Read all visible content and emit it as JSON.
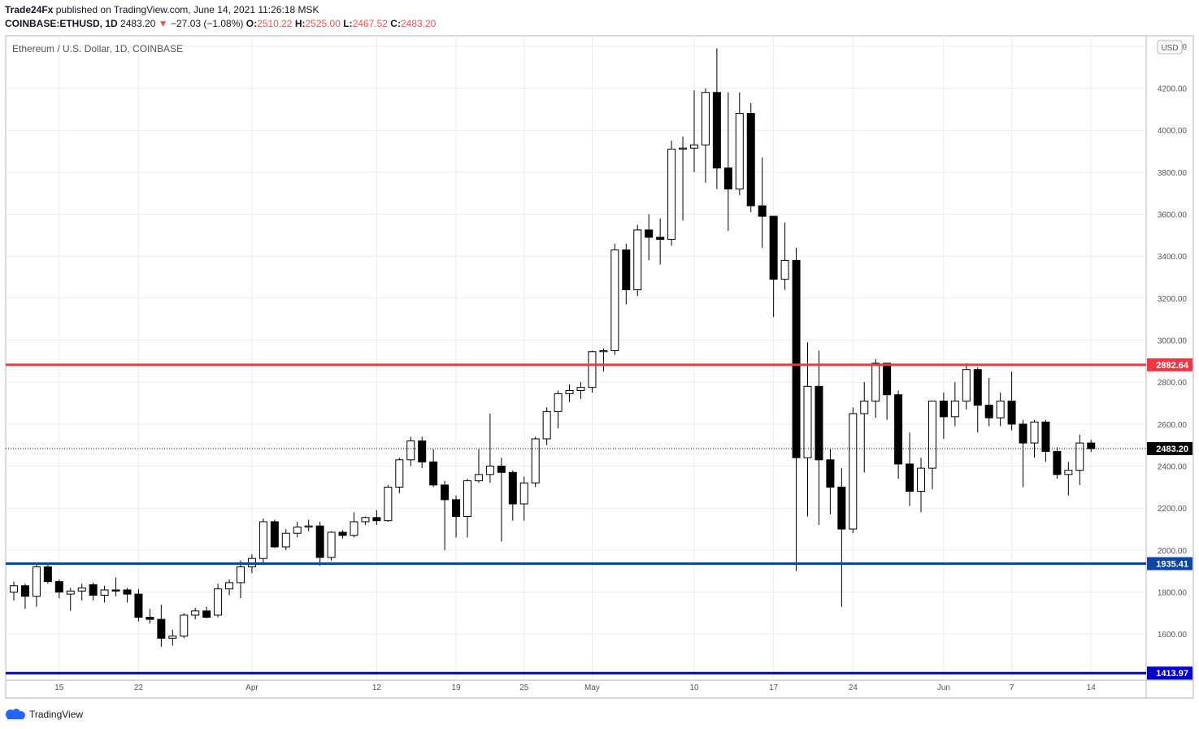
{
  "header": {
    "author": "Trade24Fx",
    "published_text": "published on TradingView.com, June 14, 2021 11:26:18 MSK",
    "symbol": "COINBASE:ETHUSD, 1D",
    "last_price": "2483.20",
    "change": "−27.03 (−1.08%)",
    "open_label": "O:",
    "open_value": "2510.22",
    "high_label": "H:",
    "high_value": "2525.00",
    "low_label": "L:",
    "low_value": "2467.52",
    "close_label": "C:",
    "close_value": "2483.20"
  },
  "footer": {
    "brand": "TradingView"
  },
  "colors": {
    "resistance": "#f23645",
    "support": "#0d47a1",
    "support_low": "#0000cc",
    "grid": "#ececec",
    "candle_up": "#ffffff",
    "candle_down": "#000000"
  },
  "chart_data": {
    "type": "candlestick",
    "title": "Ethereum / U.S. Dollar, 1D, COINBASE",
    "currency_badge": "USD",
    "ylim": [
      1380,
      4450
    ],
    "y_ticks": [
      "1600.00",
      "1800.00",
      "2000.00",
      "2200.00",
      "2400.00",
      "2600.00",
      "2800.00",
      "3000.00",
      "3200.00",
      "3400.00",
      "3600.00",
      "3800.00",
      "4000.00",
      "4200.00",
      "4400.00"
    ],
    "x_ticks": [
      {
        "label": "15",
        "date": "2021-03-15"
      },
      {
        "label": "22",
        "date": "2021-03-22"
      },
      {
        "label": "Apr",
        "date": "2021-04-01"
      },
      {
        "label": "12",
        "date": "2021-04-12"
      },
      {
        "label": "19",
        "date": "2021-04-19"
      },
      {
        "label": "25",
        "date": "2021-04-25"
      },
      {
        "label": "May",
        "date": "2021-05-01"
      },
      {
        "label": "10",
        "date": "2021-05-10"
      },
      {
        "label": "17",
        "date": "2021-05-17"
      },
      {
        "label": "24",
        "date": "2021-05-24"
      },
      {
        "label": "Jun",
        "date": "2021-06-01"
      },
      {
        "label": "7",
        "date": "2021-06-07"
      },
      {
        "label": "14",
        "date": "2021-06-14"
      }
    ],
    "candles": [
      {
        "d": "2021-03-11",
        "o": 1800,
        "h": 1850,
        "l": 1760,
        "c": 1830
      },
      {
        "d": "2021-03-12",
        "o": 1830,
        "h": 1840,
        "l": 1720,
        "c": 1780
      },
      {
        "d": "2021-03-13",
        "o": 1780,
        "h": 1940,
        "l": 1730,
        "c": 1920
      },
      {
        "d": "2021-03-14",
        "o": 1920,
        "h": 1935,
        "l": 1840,
        "c": 1850
      },
      {
        "d": "2021-03-15",
        "o": 1850,
        "h": 1860,
        "l": 1770,
        "c": 1800
      },
      {
        "d": "2021-03-16",
        "o": 1790,
        "h": 1820,
        "l": 1710,
        "c": 1805
      },
      {
        "d": "2021-03-17",
        "o": 1805,
        "h": 1840,
        "l": 1760,
        "c": 1820
      },
      {
        "d": "2021-03-18",
        "o": 1835,
        "h": 1845,
        "l": 1760,
        "c": 1785
      },
      {
        "d": "2021-03-19",
        "o": 1785,
        "h": 1830,
        "l": 1750,
        "c": 1810
      },
      {
        "d": "2021-03-20",
        "o": 1810,
        "h": 1870,
        "l": 1780,
        "c": 1805
      },
      {
        "d": "2021-03-21",
        "o": 1810,
        "h": 1820,
        "l": 1750,
        "c": 1790
      },
      {
        "d": "2021-03-22",
        "o": 1790,
        "h": 1815,
        "l": 1660,
        "c": 1680
      },
      {
        "d": "2021-03-23",
        "o": 1680,
        "h": 1720,
        "l": 1650,
        "c": 1670
      },
      {
        "d": "2021-03-24",
        "o": 1670,
        "h": 1740,
        "l": 1540,
        "c": 1580
      },
      {
        "d": "2021-03-25",
        "o": 1580,
        "h": 1620,
        "l": 1545,
        "c": 1590
      },
      {
        "d": "2021-03-26",
        "o": 1590,
        "h": 1700,
        "l": 1580,
        "c": 1690
      },
      {
        "d": "2021-03-27",
        "o": 1690,
        "h": 1725,
        "l": 1670,
        "c": 1710
      },
      {
        "d": "2021-03-28",
        "o": 1710,
        "h": 1730,
        "l": 1675,
        "c": 1680
      },
      {
        "d": "2021-03-29",
        "o": 1690,
        "h": 1840,
        "l": 1680,
        "c": 1815
      },
      {
        "d": "2021-03-30",
        "o": 1815,
        "h": 1860,
        "l": 1785,
        "c": 1845
      },
      {
        "d": "2021-03-31",
        "o": 1845,
        "h": 1950,
        "l": 1770,
        "c": 1920
      },
      {
        "d": "2021-04-01",
        "o": 1920,
        "h": 1980,
        "l": 1890,
        "c": 1960
      },
      {
        "d": "2021-04-02",
        "o": 1960,
        "h": 2150,
        "l": 1940,
        "c": 2135
      },
      {
        "d": "2021-04-03",
        "o": 2135,
        "h": 2145,
        "l": 2010,
        "c": 2015
      },
      {
        "d": "2021-04-04",
        "o": 2015,
        "h": 2100,
        "l": 2000,
        "c": 2080
      },
      {
        "d": "2021-04-05",
        "o": 2080,
        "h": 2135,
        "l": 2060,
        "c": 2110
      },
      {
        "d": "2021-04-06",
        "o": 2110,
        "h": 2145,
        "l": 2090,
        "c": 2115
      },
      {
        "d": "2021-04-07",
        "o": 2115,
        "h": 2135,
        "l": 1925,
        "c": 1965
      },
      {
        "d": "2021-04-08",
        "o": 1965,
        "h": 2090,
        "l": 1950,
        "c": 2085
      },
      {
        "d": "2021-04-09",
        "o": 2085,
        "h": 2095,
        "l": 2055,
        "c": 2070
      },
      {
        "d": "2021-04-10",
        "o": 2070,
        "h": 2180,
        "l": 2060,
        "c": 2135
      },
      {
        "d": "2021-04-11",
        "o": 2135,
        "h": 2160,
        "l": 2120,
        "c": 2155
      },
      {
        "d": "2021-04-12",
        "o": 2155,
        "h": 2190,
        "l": 2120,
        "c": 2140
      },
      {
        "d": "2021-04-13",
        "o": 2140,
        "h": 2310,
        "l": 2135,
        "c": 2300
      },
      {
        "d": "2021-04-14",
        "o": 2300,
        "h": 2440,
        "l": 2270,
        "c": 2430
      },
      {
        "d": "2021-04-15",
        "o": 2430,
        "h": 2540,
        "l": 2400,
        "c": 2520
      },
      {
        "d": "2021-04-16",
        "o": 2520,
        "h": 2540,
        "l": 2390,
        "c": 2420
      },
      {
        "d": "2021-04-17",
        "o": 2420,
        "h": 2480,
        "l": 2300,
        "c": 2310
      },
      {
        "d": "2021-04-18",
        "o": 2310,
        "h": 2330,
        "l": 2000,
        "c": 2240
      },
      {
        "d": "2021-04-19",
        "o": 2240,
        "h": 2260,
        "l": 2060,
        "c": 2160
      },
      {
        "d": "2021-04-20",
        "o": 2160,
        "h": 2340,
        "l": 2060,
        "c": 2330
      },
      {
        "d": "2021-04-21",
        "o": 2330,
        "h": 2480,
        "l": 2320,
        "c": 2360
      },
      {
        "d": "2021-04-22",
        "o": 2360,
        "h": 2650,
        "l": 2320,
        "c": 2400
      },
      {
        "d": "2021-04-23",
        "o": 2400,
        "h": 2440,
        "l": 2040,
        "c": 2370
      },
      {
        "d": "2021-04-24",
        "o": 2370,
        "h": 2380,
        "l": 2140,
        "c": 2220
      },
      {
        "d": "2021-04-25",
        "o": 2220,
        "h": 2350,
        "l": 2140,
        "c": 2320
      },
      {
        "d": "2021-04-26",
        "o": 2320,
        "h": 2540,
        "l": 2300,
        "c": 2530
      },
      {
        "d": "2021-04-27",
        "o": 2530,
        "h": 2680,
        "l": 2500,
        "c": 2660
      },
      {
        "d": "2021-04-28",
        "o": 2660,
        "h": 2760,
        "l": 2580,
        "c": 2745
      },
      {
        "d": "2021-04-29",
        "o": 2745,
        "h": 2790,
        "l": 2705,
        "c": 2760
      },
      {
        "d": "2021-04-30",
        "o": 2760,
        "h": 2800,
        "l": 2720,
        "c": 2775
      },
      {
        "d": "2021-05-01",
        "o": 2775,
        "h": 2950,
        "l": 2750,
        "c": 2945
      },
      {
        "d": "2021-05-02",
        "o": 2945,
        "h": 2960,
        "l": 2850,
        "c": 2950
      },
      {
        "d": "2021-05-03",
        "o": 2950,
        "h": 3460,
        "l": 2930,
        "c": 3430
      },
      {
        "d": "2021-05-04",
        "o": 3430,
        "h": 3460,
        "l": 3170,
        "c": 3240
      },
      {
        "d": "2021-05-05",
        "o": 3240,
        "h": 3550,
        "l": 3210,
        "c": 3525
      },
      {
        "d": "2021-05-06",
        "o": 3525,
        "h": 3600,
        "l": 3380,
        "c": 3490
      },
      {
        "d": "2021-05-07",
        "o": 3490,
        "h": 3580,
        "l": 3360,
        "c": 3480
      },
      {
        "d": "2021-05-08",
        "o": 3480,
        "h": 3950,
        "l": 3450,
        "c": 3910
      },
      {
        "d": "2021-05-09",
        "o": 3910,
        "h": 3970,
        "l": 3570,
        "c": 3915
      },
      {
        "d": "2021-05-10",
        "o": 3915,
        "h": 4190,
        "l": 3800,
        "c": 3930
      },
      {
        "d": "2021-05-11",
        "o": 3930,
        "h": 4200,
        "l": 3750,
        "c": 4180
      },
      {
        "d": "2021-05-12",
        "o": 4180,
        "h": 4390,
        "l": 3720,
        "c": 3820
      },
      {
        "d": "2021-05-13",
        "o": 3820,
        "h": 4180,
        "l": 3520,
        "c": 3720
      },
      {
        "d": "2021-05-14",
        "o": 3720,
        "h": 4180,
        "l": 3690,
        "c": 4080
      },
      {
        "d": "2021-05-15",
        "o": 4080,
        "h": 4130,
        "l": 3610,
        "c": 3640
      },
      {
        "d": "2021-05-16",
        "o": 3640,
        "h": 3870,
        "l": 3440,
        "c": 3590
      },
      {
        "d": "2021-05-17",
        "o": 3590,
        "h": 3580,
        "l": 3110,
        "c": 3290
      },
      {
        "d": "2021-05-18",
        "o": 3290,
        "h": 3560,
        "l": 3240,
        "c": 3380
      },
      {
        "d": "2021-05-19",
        "o": 3380,
        "h": 3440,
        "l": 1900,
        "c": 2440
      },
      {
        "d": "2021-05-20",
        "o": 2440,
        "h": 2990,
        "l": 2160,
        "c": 2780
      },
      {
        "d": "2021-05-21",
        "o": 2780,
        "h": 2950,
        "l": 2120,
        "c": 2430
      },
      {
        "d": "2021-05-22",
        "o": 2430,
        "h": 2480,
        "l": 2170,
        "c": 2300
      },
      {
        "d": "2021-05-23",
        "o": 2300,
        "h": 2390,
        "l": 1730,
        "c": 2100
      },
      {
        "d": "2021-05-24",
        "o": 2100,
        "h": 2680,
        "l": 2080,
        "c": 2650
      },
      {
        "d": "2021-05-25",
        "o": 2650,
        "h": 2800,
        "l": 2370,
        "c": 2710
      },
      {
        "d": "2021-05-26",
        "o": 2710,
        "h": 2910,
        "l": 2630,
        "c": 2890
      },
      {
        "d": "2021-05-27",
        "o": 2890,
        "h": 2890,
        "l": 2620,
        "c": 2740
      },
      {
        "d": "2021-05-28",
        "o": 2740,
        "h": 2760,
        "l": 2340,
        "c": 2410
      },
      {
        "d": "2021-05-29",
        "o": 2410,
        "h": 2560,
        "l": 2210,
        "c": 2280
      },
      {
        "d": "2021-05-30",
        "o": 2280,
        "h": 2440,
        "l": 2180,
        "c": 2390
      },
      {
        "d": "2021-05-31",
        "o": 2390,
        "h": 2710,
        "l": 2290,
        "c": 2710
      },
      {
        "d": "2021-06-01",
        "o": 2710,
        "h": 2750,
        "l": 2530,
        "c": 2635
      },
      {
        "d": "2021-06-02",
        "o": 2635,
        "h": 2800,
        "l": 2590,
        "c": 2710
      },
      {
        "d": "2021-06-03",
        "o": 2710,
        "h": 2890,
        "l": 2670,
        "c": 2860
      },
      {
        "d": "2021-06-04",
        "o": 2860,
        "h": 2870,
        "l": 2560,
        "c": 2690
      },
      {
        "d": "2021-06-05",
        "o": 2690,
        "h": 2820,
        "l": 2590,
        "c": 2630
      },
      {
        "d": "2021-06-06",
        "o": 2630,
        "h": 2750,
        "l": 2590,
        "c": 2710
      },
      {
        "d": "2021-06-07",
        "o": 2710,
        "h": 2850,
        "l": 2570,
        "c": 2600
      },
      {
        "d": "2021-06-08",
        "o": 2600,
        "h": 2620,
        "l": 2300,
        "c": 2510
      },
      {
        "d": "2021-06-09",
        "o": 2510,
        "h": 2620,
        "l": 2440,
        "c": 2610
      },
      {
        "d": "2021-06-10",
        "o": 2610,
        "h": 2620,
        "l": 2420,
        "c": 2470
      },
      {
        "d": "2021-06-11",
        "o": 2470,
        "h": 2490,
        "l": 2340,
        "c": 2360
      },
      {
        "d": "2021-06-12",
        "o": 2360,
        "h": 2420,
        "l": 2260,
        "c": 2380
      },
      {
        "d": "2021-06-13",
        "o": 2380,
        "h": 2550,
        "l": 2310,
        "c": 2510
      },
      {
        "d": "2021-06-14",
        "o": 2510,
        "h": 2525,
        "l": 2467.52,
        "c": 2483.2
      }
    ],
    "horizontal_lines": [
      {
        "name": "resistance",
        "value": 2882.64,
        "label": "2882.64",
        "color": "#f23645"
      },
      {
        "name": "support",
        "value": 1935.41,
        "label": "1935.41",
        "color": "#0d47a1"
      },
      {
        "name": "support-low",
        "value": 1413.97,
        "label": "1413.97",
        "color": "#0000cc"
      }
    ],
    "last_price_line": {
      "value": 2483.2,
      "label": "2483.20"
    }
  }
}
